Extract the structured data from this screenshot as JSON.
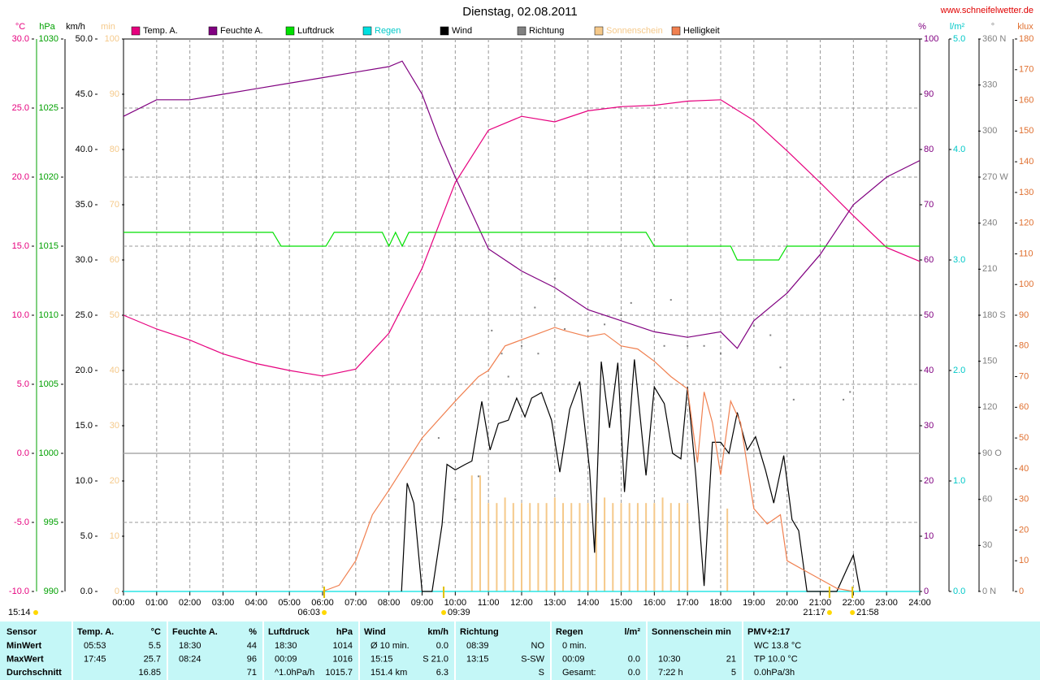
{
  "chart_data": {
    "type": "line",
    "title": "Dienstag, 02.08.2011",
    "source": "www.schneifelwetter.de",
    "time": "15:14",
    "xlim": [
      0,
      24
    ],
    "xticks": [
      {
        "value": 0,
        "label": "00:00"
      },
      {
        "value": 1,
        "label": "01:00"
      },
      {
        "value": 2,
        "label": "02:00"
      },
      {
        "value": 3,
        "label": "03:00"
      },
      {
        "value": 4,
        "label": "04:00"
      },
      {
        "value": 5,
        "label": "05:00"
      },
      {
        "value": 6,
        "label": "06:00"
      },
      {
        "value": 7,
        "label": "07:00"
      },
      {
        "value": 8,
        "label": "08:00"
      },
      {
        "value": 9,
        "label": "09:00"
      },
      {
        "value": 10,
        "label": "10:00"
      },
      {
        "value": 11,
        "label": "11:00"
      },
      {
        "value": 12,
        "label": "12:00"
      },
      {
        "value": 13,
        "label": "13:00"
      },
      {
        "value": 14,
        "label": "14:00"
      },
      {
        "value": 15,
        "label": "15:00"
      },
      {
        "value": 16,
        "label": "16:00"
      },
      {
        "value": 17,
        "label": "17:00"
      },
      {
        "value": 18,
        "label": "18:00"
      },
      {
        "value": 19,
        "label": "19:00"
      },
      {
        "value": 20,
        "label": "20:00"
      },
      {
        "value": 21,
        "label": "21:00"
      },
      {
        "value": 22,
        "label": "22:00"
      },
      {
        "value": 23,
        "label": "23:00"
      },
      {
        "value": 24,
        "label": "24:00"
      }
    ],
    "grid": true,
    "annotations": [
      {
        "value": 6.05,
        "label": "06:03"
      },
      {
        "value": 9.65,
        "label": "09:39"
      },
      {
        "value": 21.28,
        "label": "21:17"
      },
      {
        "value": 21.97,
        "label": "21:58"
      }
    ],
    "axes": [
      {
        "title": "°C",
        "color": "#e6007e",
        "lim": [
          -10,
          30
        ],
        "ticks": [
          {
            "value": 30,
            "label": "30.0"
          },
          {
            "value": 25,
            "label": "25.0"
          },
          {
            "value": 20,
            "label": "20.0"
          },
          {
            "value": 15,
            "label": "15.0"
          },
          {
            "value": 10,
            "label": "10.0"
          },
          {
            "value": 5,
            "label": "5.0"
          },
          {
            "value": 0,
            "label": "0.0"
          },
          {
            "value": -5,
            "label": "-5.0"
          },
          {
            "value": -10,
            "label": "-10.0"
          }
        ]
      },
      {
        "title": "hPa",
        "color": "#00a000",
        "lim": [
          990,
          1030
        ],
        "ticks": [
          1030,
          1025,
          1020,
          1015,
          1010,
          1005,
          1000,
          995,
          990
        ]
      },
      {
        "title": "km/h",
        "color": "#000000",
        "lim": [
          0,
          50
        ],
        "ticks": [
          {
            "value": 50,
            "label": "50.0"
          },
          {
            "value": 45,
            "label": "45.0"
          },
          {
            "value": 40,
            "label": "40.0"
          },
          {
            "value": 35,
            "label": "35.0"
          },
          {
            "value": 30,
            "label": "30.0"
          },
          {
            "value": 25,
            "label": "25.0"
          },
          {
            "value": 20,
            "label": "20.0"
          },
          {
            "value": 15,
            "label": "15.0"
          },
          {
            "value": 10,
            "label": "10.0"
          },
          {
            "value": 5,
            "label": "5.0"
          },
          {
            "value": 0,
            "label": "0.0"
          }
        ]
      },
      {
        "title": "min",
        "color": "#f5c98a",
        "lim": [
          0,
          100
        ],
        "ticks": [
          100,
          90,
          80,
          70,
          60,
          50,
          40,
          30,
          20,
          10,
          0
        ]
      },
      {
        "title": "%",
        "color": "#800080",
        "lim": [
          0,
          100
        ],
        "ticks": [
          100,
          90,
          80,
          70,
          60,
          50,
          40,
          30,
          20,
          10,
          0
        ]
      },
      {
        "title": "l/m²",
        "color": "#00c8c8",
        "lim": [
          0,
          5
        ],
        "ticks": [
          {
            "value": 5,
            "label": "5.0"
          },
          {
            "value": 4,
            "label": "4.0"
          },
          {
            "value": 3,
            "label": "3.0"
          },
          {
            "value": 2,
            "label": "2.0"
          },
          {
            "value": 1,
            "label": "1.0"
          },
          {
            "value": 0,
            "label": "0.0"
          }
        ]
      },
      {
        "title": "°",
        "color": "#808080",
        "lim": [
          0,
          360
        ],
        "ticks": [
          {
            "value": 360,
            "label": "360 N"
          },
          330,
          300,
          {
            "value": 270,
            "label": "270 W"
          },
          240,
          210,
          {
            "value": 180,
            "label": "180 S"
          },
          150,
          120,
          {
            "value": 90,
            "label": "90 O"
          },
          60,
          30,
          {
            "value": 0,
            "label": "0 N"
          }
        ]
      },
      {
        "title": "klux",
        "color": "#e07030",
        "lim": [
          0,
          180
        ],
        "ticks": [
          180,
          170,
          160,
          150,
          140,
          130,
          120,
          110,
          100,
          90,
          80,
          70,
          60,
          50,
          40,
          30,
          20,
          10,
          0
        ]
      }
    ],
    "series": [
      {
        "name": "Temp. A.",
        "color": "#e6007e",
        "axis": 0,
        "style": "line",
        "x": [
          0,
          1,
          2,
          3,
          4,
          5,
          6,
          7,
          8,
          9,
          10,
          11,
          12,
          13,
          14,
          15,
          16,
          17,
          18,
          19,
          20,
          21,
          22,
          23,
          24
        ],
        "values": [
          10.0,
          9.0,
          8.2,
          7.2,
          6.5,
          6.0,
          5.6,
          6.1,
          8.7,
          13.4,
          19.6,
          23.4,
          24.4,
          24.0,
          24.8,
          25.1,
          25.2,
          25.5,
          25.6,
          24.1,
          21.9,
          19.6,
          17.2,
          14.9,
          13.9
        ]
      },
      {
        "name": "Feuchte A.",
        "color": "#800080",
        "axis": 4,
        "style": "line",
        "x": [
          0,
          1,
          2,
          3,
          4,
          5,
          6,
          7,
          8,
          8.4,
          9,
          9.5,
          10,
          11,
          12,
          13,
          14,
          15,
          16,
          17,
          18,
          18.5,
          19,
          20,
          21,
          22,
          23,
          24
        ],
        "values": [
          86,
          89,
          89,
          90,
          91,
          92,
          93,
          94,
          95,
          96,
          90,
          82,
          75,
          62,
          58,
          55,
          51,
          49,
          47,
          46,
          47,
          44,
          49,
          54,
          61,
          70,
          75,
          78
        ]
      },
      {
        "name": "Luftdruck",
        "color": "#00e000",
        "axis": 1,
        "style": "line",
        "x": [
          0,
          4.5,
          4.75,
          6.1,
          6.35,
          7.8,
          8.0,
          8.2,
          8.4,
          8.6,
          15.75,
          16,
          18.3,
          18.5,
          19.75,
          20,
          24
        ],
        "values": [
          1016,
          1016,
          1015,
          1015,
          1016,
          1016,
          1015,
          1016,
          1015,
          1016,
          1016,
          1015,
          1015,
          1014,
          1014,
          1015,
          1015
        ]
      },
      {
        "name": "Regen",
        "color": "#00e0e0",
        "axis": 5,
        "style": "line",
        "x": [
          0,
          24
        ],
        "values": [
          0,
          0
        ]
      },
      {
        "name": "Wind",
        "color": "#000000",
        "axis": 2,
        "style": "line",
        "x": [
          8.38,
          8.55,
          8.75,
          9.0,
          9.3,
          9.6,
          9.75,
          10.0,
          10.3,
          10.5,
          10.8,
          11.05,
          11.3,
          11.6,
          11.85,
          12.1,
          12.3,
          12.6,
          12.9,
          13.15,
          13.45,
          13.75,
          14.05,
          14.2,
          14.4,
          14.65,
          14.9,
          15.1,
          15.4,
          15.75,
          16.0,
          16.3,
          16.55,
          16.8,
          17.0,
          17.25,
          17.5,
          17.75,
          18.0,
          18.25,
          18.5,
          18.8,
          19.05,
          19.35,
          19.6,
          19.9,
          20.15,
          20.35,
          20.6,
          21.5,
          21.8,
          22.0,
          22.2
        ],
        "values": [
          0,
          9.8,
          8.0,
          0,
          0,
          6.0,
          11.5,
          11.0,
          11.5,
          11.8,
          17.2,
          12.8,
          15.2,
          15.5,
          17.5,
          15.8,
          17.5,
          18.0,
          15.5,
          10.8,
          16.5,
          19.0,
          11.0,
          3.5,
          20.8,
          14.8,
          20.7,
          9.0,
          21.0,
          10.5,
          18.5,
          17.0,
          12.5,
          12.0,
          18.5,
          10.5,
          0.5,
          13.5,
          13.5,
          12.5,
          16.2,
          12.8,
          14.0,
          11.0,
          8.0,
          12.3,
          6.5,
          5.5,
          0,
          0,
          2.0,
          3.3,
          0
        ]
      },
      {
        "name": "Richtung",
        "color": "#808080",
        "axis": 6,
        "style": "dots",
        "x": [
          9.5,
          10.0,
          10.7,
          11.1,
          11.4,
          11.6,
          12.0,
          12.4,
          12.5,
          13.0,
          13.3,
          14.0,
          14.5,
          15.0,
          15.3,
          16.3,
          16.5,
          17.0,
          17.5,
          18.0,
          19.0,
          19.5,
          19.8,
          20.2,
          21.7,
          21.9
        ],
        "values": [
          100,
          60,
          75,
          170,
          155,
          140,
          160,
          185,
          155,
          204,
          171,
          170,
          174,
          180,
          188,
          160,
          190,
          160,
          160,
          155,
          173,
          167,
          146,
          125,
          125,
          130
        ]
      },
      {
        "name": "Sonnenschein",
        "color": "#f5c98a",
        "axis": 3,
        "style": "bars",
        "x": [
          10.5,
          10.75,
          11.0,
          11.25,
          11.5,
          11.75,
          12.0,
          12.25,
          12.5,
          12.75,
          13.0,
          13.25,
          13.5,
          13.75,
          14.0,
          14.25,
          14.5,
          14.75,
          15.0,
          15.25,
          15.5,
          15.75,
          16.0,
          16.25,
          16.5,
          16.75,
          17.0,
          18.2
        ],
        "values": [
          21,
          21,
          16,
          16,
          17,
          16,
          16,
          16,
          16,
          16,
          17,
          16,
          16,
          16,
          16,
          16,
          17,
          16,
          16,
          16,
          16,
          16,
          16,
          17,
          16,
          16,
          16,
          15
        ]
      },
      {
        "name": "Helligkeit",
        "color": "#f08050",
        "axis": 7,
        "style": "line",
        "x": [
          6,
          6.5,
          7,
          7.5,
          8,
          9,
          10,
          10.7,
          11,
          11.5,
          12,
          12.5,
          13,
          13.3,
          14,
          14.5,
          15,
          15.5,
          16,
          16.5,
          17,
          17.3,
          17.5,
          17.75,
          18,
          18.3,
          18.6,
          19,
          19.4,
          19.8,
          20,
          20.5,
          21,
          21.5,
          22
        ],
        "values": [
          0,
          2,
          10,
          25,
          33,
          50,
          62,
          70,
          72,
          80,
          82,
          84,
          86,
          85,
          83,
          84,
          80,
          79,
          75,
          70,
          66,
          42,
          65,
          55,
          38,
          62,
          55,
          27,
          22,
          25,
          10,
          7,
          4,
          1,
          0
        ]
      }
    ]
  },
  "table": {
    "columns": [
      {
        "title": "Sensor",
        "rows": [
          {
            "left": "MinWert"
          },
          {
            "left": "MaxWert"
          },
          {
            "left": "Durchschnitt"
          }
        ]
      },
      {
        "title": "Temp. A.",
        "unit": "°C",
        "rows": [
          {
            "left": "05:53",
            "right": "5.5"
          },
          {
            "left": "17:45",
            "right": "25.7"
          },
          {
            "right": "16.85"
          }
        ]
      },
      {
        "title": "Feuchte A.",
        "unit": "%",
        "rows": [
          {
            "left": "18:30",
            "right": "44"
          },
          {
            "left": "08:24",
            "right": "96"
          },
          {
            "right": "71"
          }
        ]
      },
      {
        "title": "Luftdruck",
        "unit": "hPa",
        "rows": [
          {
            "left": "18:30",
            "right": "1014"
          },
          {
            "left": "00:09",
            "right": "1016"
          },
          {
            "left": "^1.0hPa/h",
            "right": "1015.7"
          }
        ]
      },
      {
        "title": "Wind",
        "unit": "km/h",
        "rows": [
          {
            "left": "Ø 10 min.",
            "right": "0.0"
          },
          {
            "left": "15:15",
            "right": "S 21.0"
          },
          {
            "left": "151.4 km",
            "right": "6.3"
          }
        ]
      },
      {
        "title": "Richtung",
        "rows": [
          {
            "left": "08:39",
            "right": "NO"
          },
          {
            "left": "13:15",
            "right": "S-SW"
          },
          {
            "right": "S"
          }
        ]
      },
      {
        "title": "Regen",
        "unit": "l/m²",
        "rows": [
          {
            "left": "0 min."
          },
          {
            "left": "00:09",
            "right": "0.0"
          },
          {
            "left": "Gesamt:",
            "right": "0.0"
          }
        ]
      },
      {
        "title": "Sonnenschein min",
        "rows": [
          {},
          {
            "left": "10:30",
            "right": "21"
          },
          {
            "left": "7:22 h",
            "right": "5"
          }
        ]
      },
      {
        "title": "PMV+2:17",
        "rows": [
          {
            "left": "WC 13.8 °C"
          },
          {
            "left": "TP 10.0 °C"
          },
          {
            "left": "0.0hPa/3h"
          }
        ]
      }
    ]
  }
}
